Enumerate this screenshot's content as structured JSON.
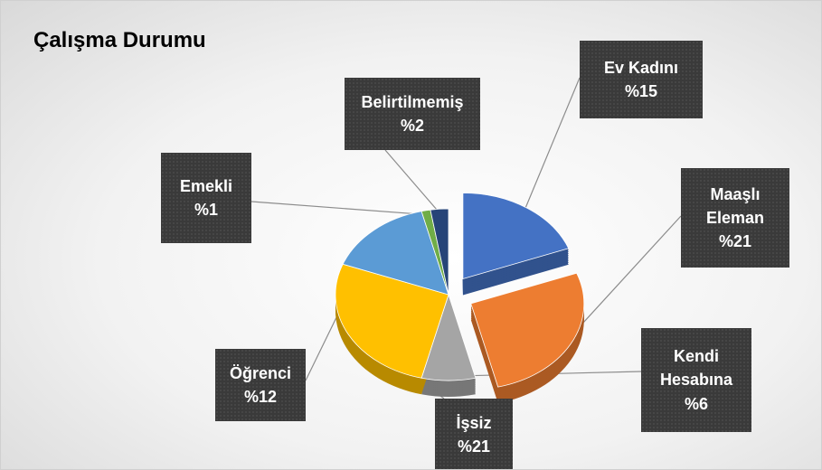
{
  "chart_data": {
    "type": "pie",
    "title": "Çalışma Durumu",
    "categories": [
      "Ev Kadını",
      "Maaşlı Eleman",
      "Kendi Hesabına",
      "İşsiz",
      "Öğrenci",
      "Emekli",
      "Belirtilmemiş"
    ],
    "values": [
      15,
      21,
      6,
      21,
      12,
      1,
      2
    ],
    "value_labels": [
      "%15",
      "%21",
      "%6",
      "%21",
      "%12",
      "%1",
      "%2"
    ],
    "colors": [
      "#4472c4",
      "#ed7d31",
      "#a5a5a5",
      "#ffc000",
      "#5b9bd5",
      "#70ad47",
      "#264478"
    ]
  }
}
